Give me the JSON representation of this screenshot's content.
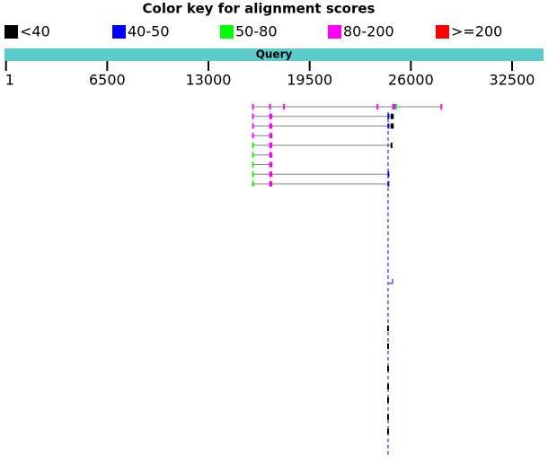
{
  "title": "Color key for alignment scores",
  "legend": [
    {
      "label": "<40",
      "color": "#000000"
    },
    {
      "label": "40-50",
      "color": "#0000ff"
    },
    {
      "label": "50-80",
      "color": "#00ff00"
    },
    {
      "label": "80-200",
      "color": "#ff00ff"
    },
    {
      "label": ">=200",
      "color": "#ff0000"
    }
  ],
  "query_label": "Query",
  "query_color": "#5bcbcb",
  "axis": {
    "ticks": [
      1,
      6500,
      13000,
      19500,
      26000,
      32500
    ]
  },
  "line_color": "#808080",
  "hits": [
    {
      "segments": [
        {
          "start": 15800,
          "end": 15900,
          "color": "#ff00ff"
        },
        {
          "start": 16900,
          "end": 17000,
          "color": "#ff00ff"
        },
        {
          "start": 17800,
          "end": 17900,
          "color": "#ff00ff"
        },
        {
          "start": 23800,
          "end": 23900,
          "color": "#ff00ff"
        },
        {
          "start": 24800,
          "end": 25000,
          "color": "#ff00ff"
        },
        {
          "start": 25000,
          "end": 25100,
          "color": "#00ff00"
        },
        {
          "start": 27900,
          "end": 28000,
          "color": "#ff00ff"
        }
      ]
    },
    {
      "segments": [
        {
          "start": 15800,
          "end": 15900,
          "color": "#ff00ff"
        },
        {
          "start": 16900,
          "end": 17100,
          "color": "#ff00ff"
        },
        {
          "start": 24500,
          "end": 24600,
          "color": "#0000ff"
        },
        {
          "start": 24700,
          "end": 24900,
          "color": "#000000"
        }
      ]
    },
    {
      "segments": [
        {
          "start": 15800,
          "end": 15900,
          "color": "#ff00ff"
        },
        {
          "start": 16900,
          "end": 17100,
          "color": "#ff00ff"
        },
        {
          "start": 24500,
          "end": 24600,
          "color": "#0000ff"
        },
        {
          "start": 24700,
          "end": 24900,
          "color": "#000000"
        }
      ]
    },
    {
      "segments": [
        {
          "start": 15800,
          "end": 15900,
          "color": "#ff00ff"
        },
        {
          "start": 16900,
          "end": 17100,
          "color": "#ff00ff"
        }
      ]
    },
    {
      "segments": [
        {
          "start": 15800,
          "end": 15900,
          "color": "#00ff00"
        },
        {
          "start": 16900,
          "end": 17100,
          "color": "#ff00ff"
        },
        {
          "start": 24700,
          "end": 24800,
          "color": "#000000"
        }
      ]
    },
    {
      "segments": [
        {
          "start": 15800,
          "end": 15900,
          "color": "#00ff00"
        },
        {
          "start": 16900,
          "end": 17100,
          "color": "#ff00ff"
        }
      ]
    },
    {
      "segments": [
        {
          "start": 15800,
          "end": 15900,
          "color": "#00ff00"
        },
        {
          "start": 16900,
          "end": 17100,
          "color": "#ff00ff"
        }
      ]
    },
    {
      "segments": [
        {
          "start": 15800,
          "end": 15900,
          "color": "#00ff00"
        },
        {
          "start": 16900,
          "end": 17100,
          "color": "#ff00ff"
        },
        {
          "start": 24500,
          "end": 24600,
          "color": "#0000ff"
        }
      ]
    },
    {
      "segments": [
        {
          "start": 15800,
          "end": 15900,
          "color": "#00ff00"
        },
        {
          "start": 16900,
          "end": 17100,
          "color": "#ff00ff"
        },
        {
          "start": 24500,
          "end": 24600,
          "color": "#0000ff"
        }
      ]
    }
  ]
}
